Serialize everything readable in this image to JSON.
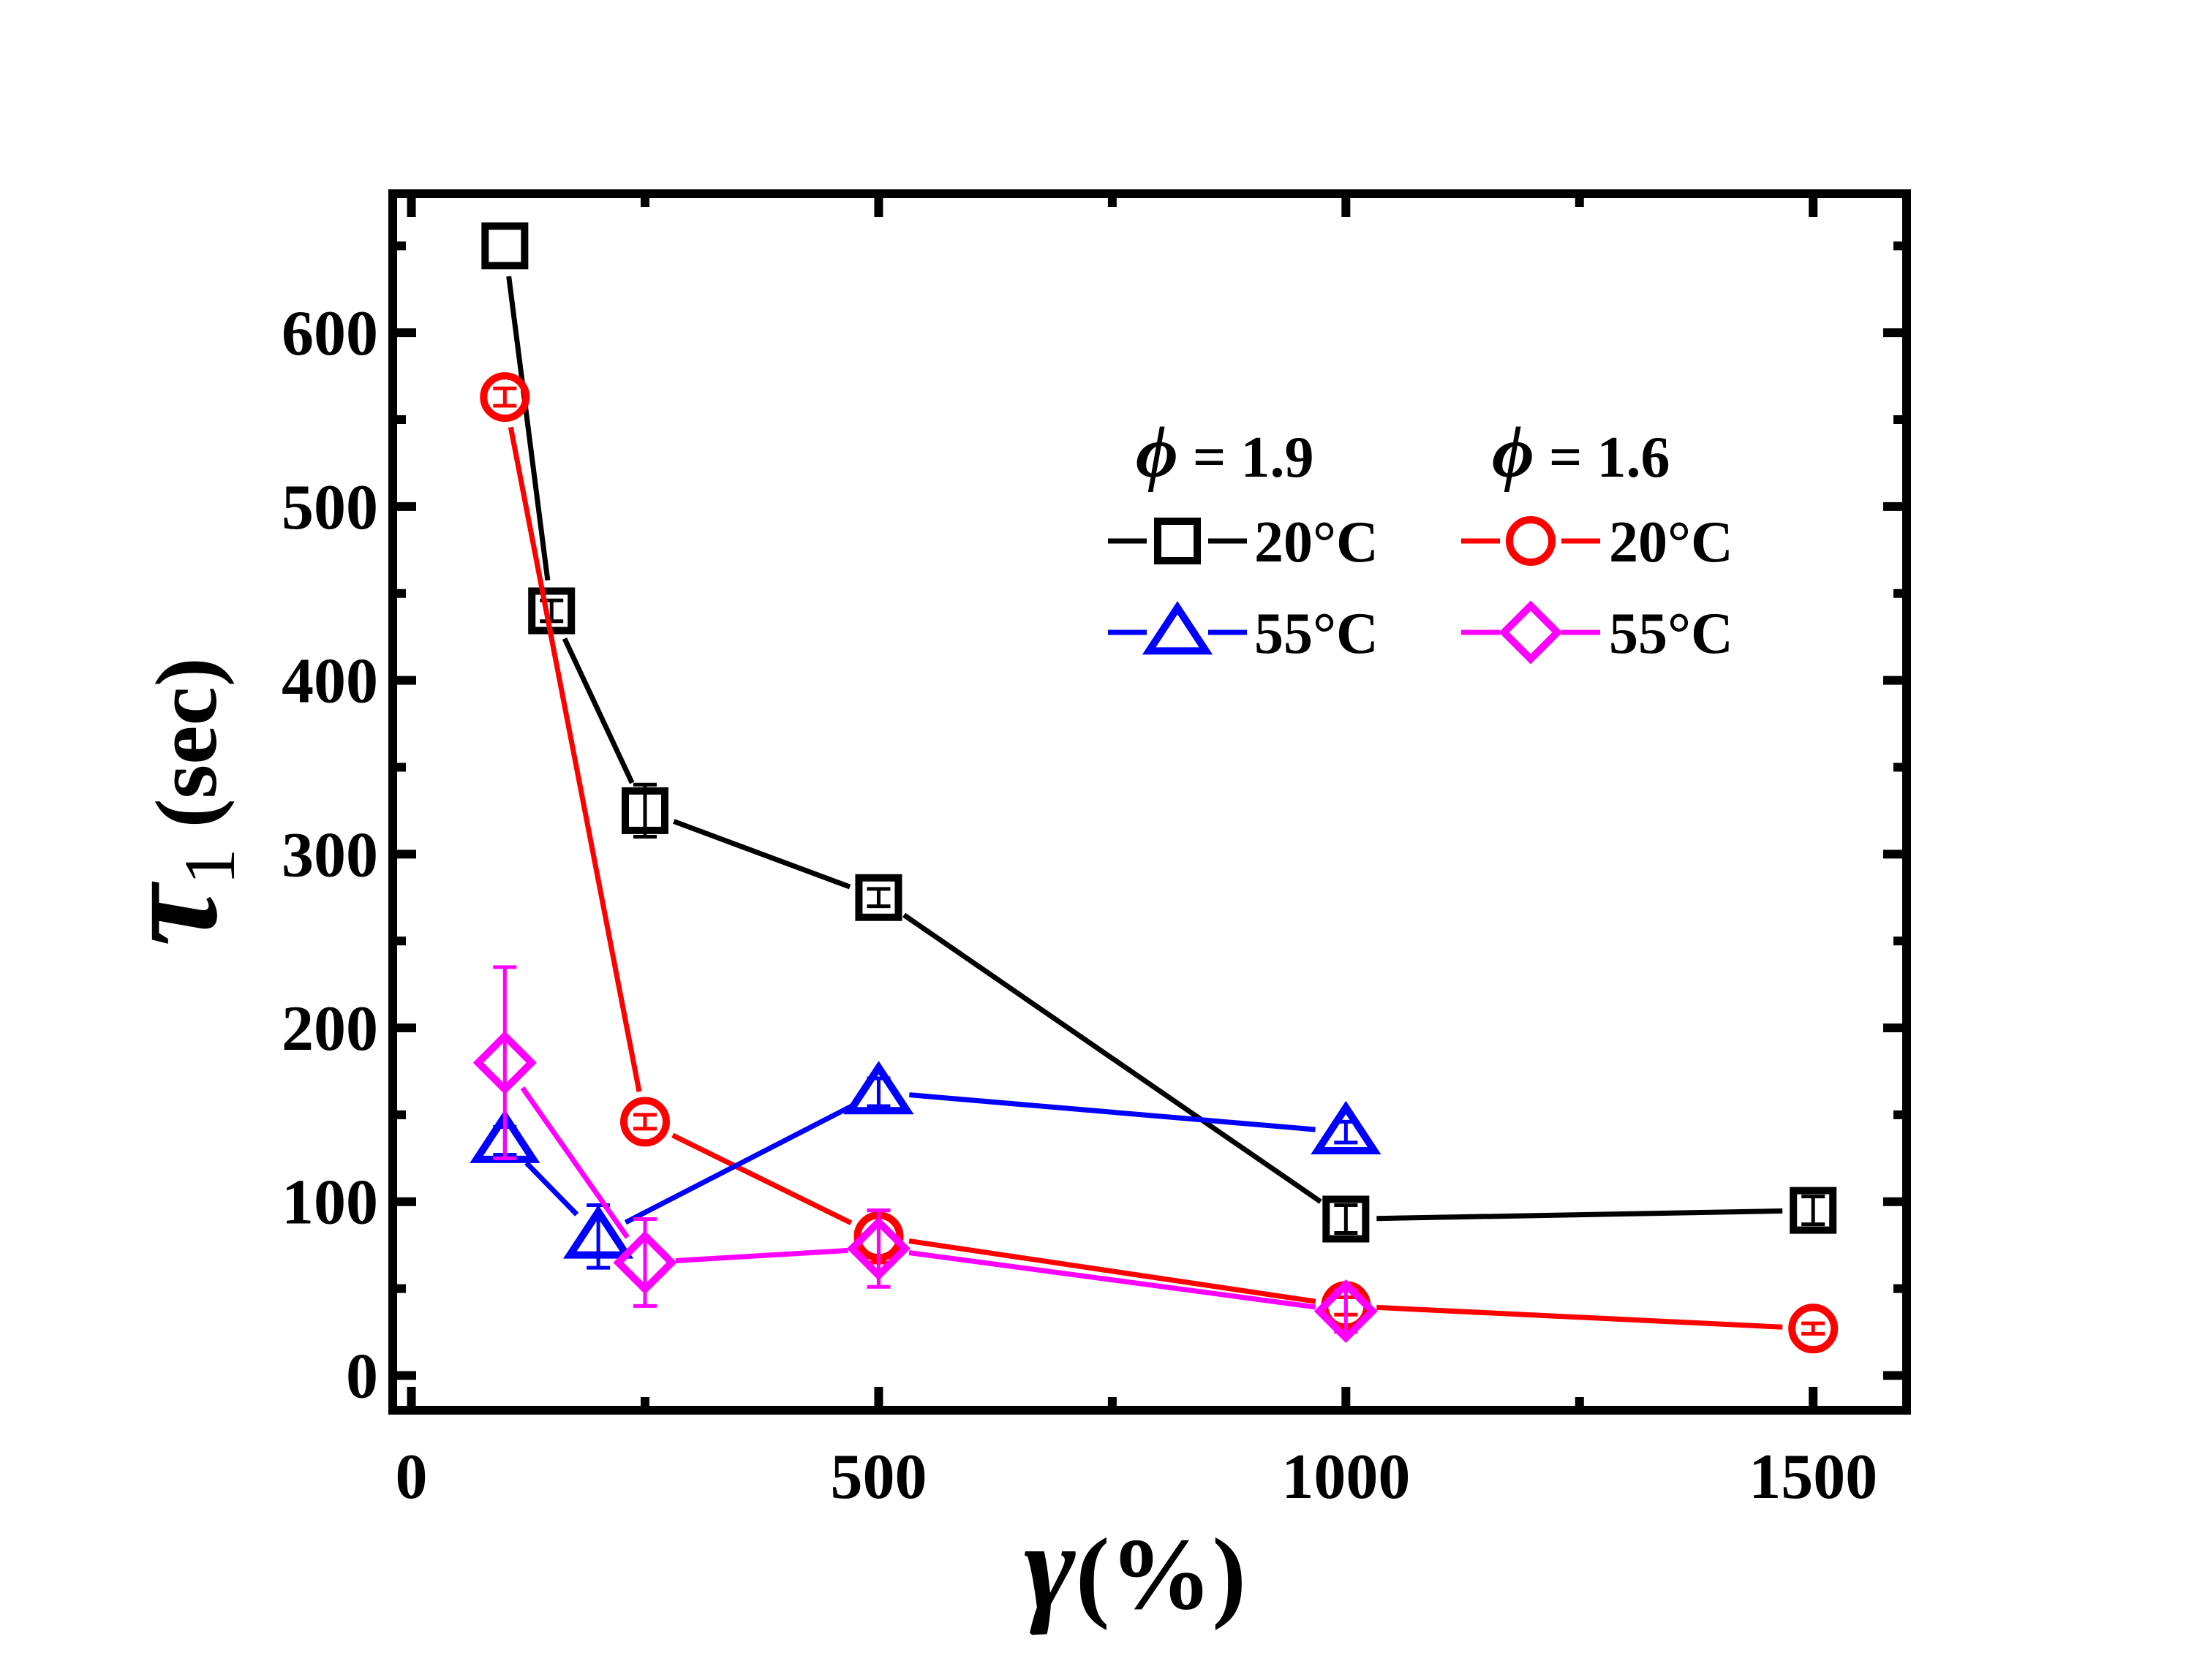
{
  "chart_data": {
    "type": "line",
    "xlabel_symbol": "γ",
    "xlabel_unit": "(%)",
    "ylabel_symbol": "τ",
    "ylabel_subscript": "1",
    "ylabel_unit": "(sec)",
    "xlim": [
      -20,
      1600
    ],
    "ylim": [
      -20,
      680
    ],
    "xticks": [
      0,
      500,
      1000,
      1500
    ],
    "xtick_labels": [
      "0",
      "500",
      "1000",
      "1500"
    ],
    "yticks": [
      0,
      100,
      200,
      300,
      400,
      500,
      600
    ],
    "ytick_labels": [
      "0",
      "100",
      "200",
      "300",
      "400",
      "500",
      "600"
    ],
    "grid": false,
    "legend": {
      "position": "top-right",
      "group_headers": [
        {
          "symbol": "ϕ",
          "text": " = 1.9"
        },
        {
          "symbol": "ϕ",
          "text": " = 1.6"
        }
      ]
    },
    "series": [
      {
        "name": "20°C",
        "group": "ϕ = 1.9",
        "color": "#000000",
        "marker": "square",
        "x": [
          100,
          150,
          250,
          500,
          1000,
          1500
        ],
        "y": [
          650,
          440,
          325,
          275,
          90,
          95
        ],
        "err": [
          0,
          6,
          15,
          5,
          8,
          8
        ]
      },
      {
        "name": "20°C",
        "group": "ϕ = 1.6",
        "color": "#ff0000",
        "marker": "circle",
        "x": [
          100,
          250,
          500,
          1000,
          1500
        ],
        "y": [
          563,
          146,
          80,
          40,
          27
        ],
        "err": [
          5,
          4,
          15,
          5,
          3
        ]
      },
      {
        "name": "55°C",
        "group": "ϕ = 1.9",
        "color": "#0000ff",
        "marker": "triangle",
        "x": [
          100,
          200,
          500,
          1000
        ],
        "y": [
          135,
          80,
          163,
          140
        ],
        "err": [
          8,
          18,
          8,
          6
        ]
      },
      {
        "name": "55°C",
        "group": "ϕ = 1.6",
        "color": "#ff00ff",
        "marker": "diamond",
        "x": [
          100,
          250,
          500,
          1000
        ],
        "y": [
          180,
          65,
          73,
          37
        ],
        "err": [
          55,
          25,
          22,
          12
        ]
      }
    ]
  }
}
